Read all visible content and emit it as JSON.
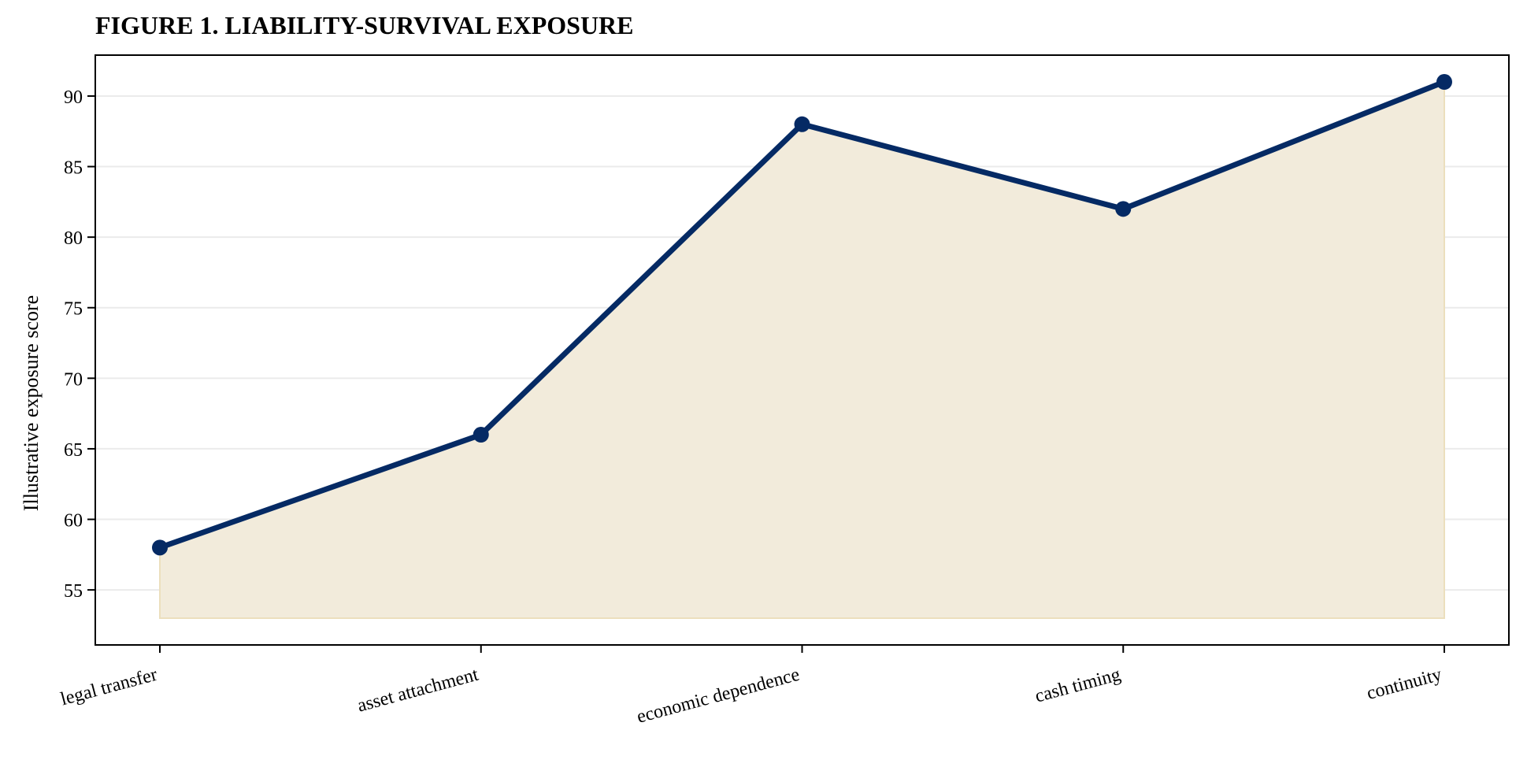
{
  "chart_data": {
    "type": "area",
    "title": "FIGURE 1. LIABILITY-SURVIVAL EXPOSURE",
    "xlabel": "",
    "ylabel": "Illustrative exposure score",
    "categories": [
      "legal transfer",
      "asset attachment",
      "economic dependence",
      "cash timing",
      "continuity"
    ],
    "values": [
      58,
      66,
      88,
      82,
      91
    ],
    "fill_baseline": 53,
    "ylim": [
      51.1,
      92.9
    ],
    "yticks": [
      55,
      60,
      65,
      70,
      75,
      80,
      85,
      90
    ],
    "grid": "y-only",
    "legend": "none",
    "colors": {
      "line": "#052a64",
      "marker": "#052a64",
      "fill": "#f2ebdb",
      "fill_edge": "#ecdfbd",
      "grid": "#ebebeb",
      "axis": "#000000"
    }
  }
}
